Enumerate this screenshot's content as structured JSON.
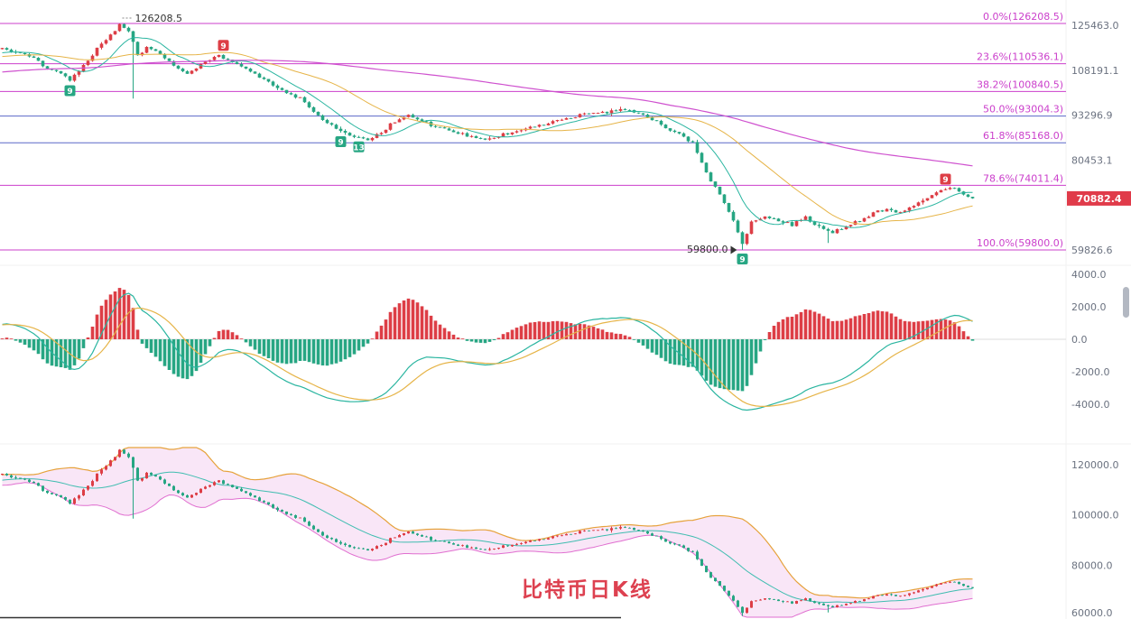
{
  "title": {
    "text": "比特币日K线",
    "color": "#dd4150"
  },
  "colors": {
    "up": "#dd3e46",
    "down": "#27a683",
    "ma_short": "#2ab5a0",
    "ma_mid": "#e6b448",
    "ma_long": "#cf52cf",
    "fib_magenta": "#cb3fcb",
    "fib_blue": "#5b68c8",
    "axis_text": "#6b7280",
    "dif": "#2ab5a0",
    "dea": "#e6b448",
    "boll_upper": "#e6a23c",
    "boll_mid": "#3fbdb0",
    "boll_lower": "#e06fd0",
    "boll_fill": "#f2c7ee",
    "price_tag_bg": "#e03b4a",
    "price_tag_text": "#ffffff"
  },
  "chart_data": [
    {
      "panel": "price",
      "type": "candlestick",
      "scale": "log",
      "candles": 216,
      "close_anchors": [
        [
          0,
          116500
        ],
        [
          6,
          113500
        ],
        [
          9,
          110000
        ],
        [
          12,
          108000
        ],
        [
          15,
          104500
        ],
        [
          19,
          112000
        ],
        [
          23,
          120000
        ],
        [
          26,
          125500
        ],
        [
          28,
          123000
        ],
        [
          30,
          113500
        ],
        [
          32,
          116500
        ],
        [
          35,
          114000
        ],
        [
          38,
          109500
        ],
        [
          41,
          106500
        ],
        [
          44,
          110500
        ],
        [
          48,
          113500
        ],
        [
          51,
          111000
        ],
        [
          54,
          108500
        ],
        [
          57,
          106000
        ],
        [
          60,
          103000
        ],
        [
          63,
          100500
        ],
        [
          66,
          98500
        ],
        [
          69,
          94500
        ],
        [
          72,
          91000
        ],
        [
          75,
          88500
        ],
        [
          78,
          87000
        ],
        [
          81,
          86000
        ],
        [
          84,
          88000
        ],
        [
          87,
          91500
        ],
        [
          90,
          93000
        ],
        [
          93,
          91500
        ],
        [
          96,
          89500
        ],
        [
          99,
          88500
        ],
        [
          102,
          87500
        ],
        [
          105,
          86800
        ],
        [
          108,
          86000
        ],
        [
          111,
          87500
        ],
        [
          114,
          88500
        ],
        [
          117,
          89500
        ],
        [
          120,
          90500
        ],
        [
          123,
          91500
        ],
        [
          126,
          92500
        ],
        [
          129,
          93500
        ],
        [
          132,
          94000
        ],
        [
          135,
          94500
        ],
        [
          138,
          95000
        ],
        [
          141,
          94000
        ],
        [
          144,
          92000
        ],
        [
          147,
          89500
        ],
        [
          150,
          87500
        ],
        [
          153,
          85000
        ],
        [
          155,
          80000
        ],
        [
          157,
          75000
        ],
        [
          159,
          72000
        ],
        [
          161,
          68000
        ],
        [
          163,
          63500
        ],
        [
          164,
          61000
        ],
        [
          166,
          65500
        ],
        [
          169,
          67000
        ],
        [
          172,
          66000
        ],
        [
          175,
          65000
        ],
        [
          178,
          66500
        ],
        [
          181,
          64500
        ],
        [
          184,
          63500
        ],
        [
          187,
          64500
        ],
        [
          190,
          66000
        ],
        [
          193,
          67500
        ],
        [
          196,
          68500
        ],
        [
          199,
          67500
        ],
        [
          202,
          69500
        ],
        [
          205,
          71000
        ],
        [
          208,
          72500
        ],
        [
          210,
          73500
        ],
        [
          212,
          72500
        ],
        [
          214,
          71500
        ],
        [
          215,
          70882.4
        ]
      ],
      "extremes": {
        "high": {
          "index": 26,
          "price": 126208.5,
          "label": "126208.5"
        },
        "low": {
          "index": 164,
          "price": 59800.0,
          "label": "59800.0"
        }
      },
      "long_wicks": [
        {
          "index": 29,
          "price": 98500
        },
        {
          "index": 183,
          "price": 61200
        }
      ],
      "fibonacci": [
        {
          "label": "0.0%(126208.5)",
          "price": 126208.5,
          "color_key": "magenta"
        },
        {
          "label": "23.6%(110536.1)",
          "price": 110536.1,
          "color_key": "magenta"
        },
        {
          "label": "38.2%(100840.5)",
          "price": 100840.5,
          "color_key": "magenta"
        },
        {
          "label": "50.0%(93004.3)",
          "price": 93004.3,
          "color_key": "blue"
        },
        {
          "label": "61.8%(85168.0)",
          "price": 85168.0,
          "color_key": "blue"
        },
        {
          "label": "78.6%(74011.4)",
          "price": 74011.4,
          "color_key": "magenta"
        },
        {
          "label": "100.0%(59800.0)",
          "price": 59800.0,
          "color_key": "magenta"
        }
      ],
      "y_axis": [
        {
          "label": "125463.0",
          "price": 125463.0
        },
        {
          "label": "108191.1",
          "price": 108191.1
        },
        {
          "label": "93296.9",
          "price": 93296.9
        },
        {
          "label": "80453.1",
          "price": 80453.1
        },
        {
          "label": "59826.6",
          "price": 59826.6
        }
      ],
      "current_price": {
        "label": "70882.4",
        "price": 70882.4
      },
      "markers": [
        {
          "text": "9",
          "color": "green",
          "index": 15,
          "side": "below"
        },
        {
          "text": "9",
          "color": "red",
          "index": 49,
          "side": "above"
        },
        {
          "text": "9",
          "color": "green",
          "index": 75,
          "side": "below"
        },
        {
          "text": "13",
          "color": "green",
          "index": 79,
          "side": "below"
        },
        {
          "text": "9",
          "color": "green",
          "index": 164,
          "side": "below"
        },
        {
          "text": "9",
          "color": "red",
          "index": 209,
          "side": "above"
        }
      ],
      "moving_averages": [
        {
          "period": 10,
          "color_key": "ma_short"
        },
        {
          "period": 30,
          "color_key": "ma_mid"
        },
        {
          "period": 120,
          "color_key": "ma_long"
        }
      ]
    },
    {
      "panel": "macd",
      "type": "bar",
      "y_axis": [
        {
          "label": "4000.0",
          "value": 4000
        },
        {
          "label": "2000.0",
          "value": 2000
        },
        {
          "label": "0.0",
          "value": 0
        },
        {
          "label": "-2000.0",
          "value": -2000
        },
        {
          "label": "-4000.0",
          "value": -4000
        }
      ]
    },
    {
      "panel": "boll",
      "type": "candlestick",
      "scale": "linear",
      "y_axis": [
        {
          "label": "120000.0",
          "value": 120000
        },
        {
          "label": "100000.0",
          "value": 100000
        },
        {
          "label": "80000.0",
          "value": 80000
        },
        {
          "label": "60000.0",
          "value": 60000
        }
      ]
    }
  ]
}
